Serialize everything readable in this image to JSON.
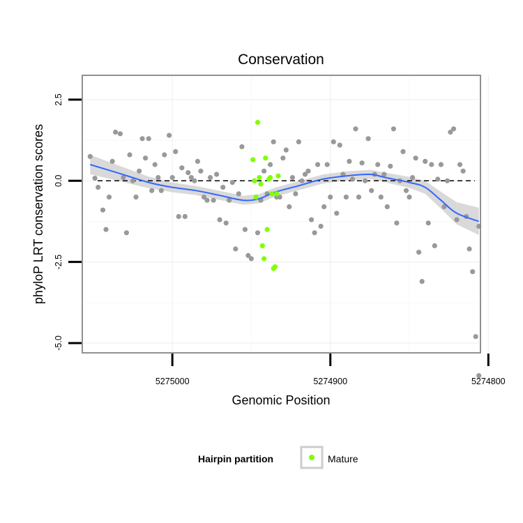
{
  "chart_data": {
    "type": "scatter",
    "title": "Conservation",
    "xlabel": "Genomic Position",
    "ylabel": "phyloP LRT conservation scores",
    "x_reversed": true,
    "xlim": [
      5275057,
      5274805
    ],
    "ylim": [
      -5.3,
      3.25
    ],
    "x_ticks": [
      5275000,
      5274900,
      5274800
    ],
    "x_tick_labels": [
      "5275000",
      "5274900",
      "5274800"
    ],
    "y_ticks": [
      2.5,
      0,
      -2.5,
      -5
    ],
    "y_tick_labels": [
      "2.5",
      "0.0",
      "-2.5",
      "-5.0"
    ],
    "grid": true,
    "reference_line": {
      "y": 0,
      "style": "dashed"
    },
    "legend": {
      "title": "Hairpin partition",
      "entries": [
        {
          "label": "Mature",
          "color": "#7fff00"
        }
      ],
      "position": "bottom"
    },
    "colors": {
      "other": "#999999",
      "mature": "#7fff00",
      "smooth": "#3366ff",
      "band": "#cccccc"
    },
    "series": [
      {
        "color": "#999999",
        "points": [
          [
            5275052,
            0.75
          ],
          [
            5275049,
            0.08
          ],
          [
            5275047,
            -0.2
          ],
          [
            5275044,
            -0.9
          ],
          [
            5275042,
            -1.5
          ],
          [
            5275040,
            -0.5
          ],
          [
            5275038,
            0.6
          ],
          [
            5275036,
            1.5
          ],
          [
            5275033,
            1.45
          ],
          [
            5275031,
            0.1
          ],
          [
            5275029,
            -1.6
          ],
          [
            5275027,
            0.8
          ],
          [
            5275025,
            0.0
          ],
          [
            5275023,
            -0.5
          ],
          [
            5275021,
            0.3
          ],
          [
            5275019,
            1.3
          ],
          [
            5275017,
            0.7
          ],
          [
            5275015,
            1.3
          ],
          [
            5275013,
            -0.3
          ],
          [
            5275011,
            0.5
          ],
          [
            5275009,
            0.1
          ],
          [
            5275007,
            -0.3
          ],
          [
            5275005,
            0.8
          ],
          [
            5275002,
            1.4
          ],
          [
            5275000,
            0.1
          ],
          [
            5274998,
            0.9
          ],
          [
            5274996,
            -1.1
          ],
          [
            5274994,
            0.4
          ],
          [
            5274992,
            -1.1
          ],
          [
            5274990,
            0.25
          ],
          [
            5274988,
            0.1
          ],
          [
            5274986,
            0.0
          ],
          [
            5274984,
            0.6
          ],
          [
            5274982,
            0.3
          ],
          [
            5274980,
            -0.5
          ],
          [
            5274978,
            -0.6
          ],
          [
            5274976,
            0.1
          ],
          [
            5274974,
            -0.6
          ],
          [
            5274972,
            0.2
          ],
          [
            5274970,
            -1.2
          ],
          [
            5274968,
            -0.2
          ],
          [
            5274966,
            -1.3
          ],
          [
            5274964,
            -0.6
          ],
          [
            5274962,
            -0.05
          ],
          [
            5274960,
            -2.1
          ],
          [
            5274958,
            -0.4
          ],
          [
            5274956,
            1.05
          ],
          [
            5274954,
            -1.5
          ],
          [
            5274952,
            -2.3
          ],
          [
            5274950,
            -2.4
          ],
          [
            5274948,
            0.0
          ],
          [
            5274946,
            -1.6
          ],
          [
            5274944,
            -0.6
          ],
          [
            5274942,
            0.3
          ],
          [
            5274940,
            -0.4
          ],
          [
            5274938,
            0.5
          ],
          [
            5274936,
            1.2
          ],
          [
            5274934,
            -0.5
          ],
          [
            5274932,
            -0.5
          ],
          [
            5274930,
            0.7
          ],
          [
            5274928,
            0.95
          ],
          [
            5274926,
            -0.8
          ],
          [
            5274924,
            0.1
          ],
          [
            5274922,
            -0.4
          ],
          [
            5274920,
            1.2
          ],
          [
            5274918,
            0.0
          ],
          [
            5274916,
            0.2
          ],
          [
            5274914,
            0.3
          ],
          [
            5274912,
            -1.2
          ],
          [
            5274910,
            -1.6
          ],
          [
            5274908,
            0.5
          ],
          [
            5274906,
            -1.4
          ],
          [
            5274904,
            -0.8
          ],
          [
            5274902,
            0.5
          ],
          [
            5274900,
            -0.5
          ],
          [
            5274898,
            1.2
          ],
          [
            5274896,
            -1.0
          ],
          [
            5274894,
            1.1
          ],
          [
            5274892,
            0.2
          ],
          [
            5274890,
            -0.5
          ],
          [
            5274888,
            0.6
          ],
          [
            5274886,
            0.05
          ],
          [
            5274884,
            1.6
          ],
          [
            5274882,
            -0.5
          ],
          [
            5274880,
            0.55
          ],
          [
            5274878,
            0.0
          ],
          [
            5274876,
            1.3
          ],
          [
            5274874,
            -0.3
          ],
          [
            5274872,
            0.2
          ],
          [
            5274870,
            0.5
          ],
          [
            5274868,
            -0.5
          ],
          [
            5274866,
            0.2
          ],
          [
            5274864,
            -0.8
          ],
          [
            5274862,
            0.45
          ],
          [
            5274860,
            1.6
          ],
          [
            5274858,
            -1.3
          ],
          [
            5274856,
            0.0
          ],
          [
            5274854,
            0.9
          ],
          [
            5274852,
            -0.3
          ],
          [
            5274850,
            -0.5
          ],
          [
            5274848,
            0.1
          ],
          [
            5274846,
            0.7
          ],
          [
            5274844,
            -2.2
          ],
          [
            5274842,
            -3.1
          ],
          [
            5274840,
            0.6
          ],
          [
            5274838,
            -1.3
          ],
          [
            5274836,
            0.5
          ],
          [
            5274834,
            -2.0
          ],
          [
            5274832,
            0.05
          ],
          [
            5274830,
            0.5
          ],
          [
            5274828,
            -0.8
          ],
          [
            5274826,
            0.0
          ],
          [
            5274824,
            1.5
          ],
          [
            5274822,
            1.6
          ],
          [
            5274820,
            -1.2
          ],
          [
            5274818,
            0.5
          ],
          [
            5274816,
            0.3
          ],
          [
            5274814,
            -1.1
          ],
          [
            5274812,
            -2.1
          ],
          [
            5274810,
            -2.8
          ],
          [
            5274808,
            -4.8
          ],
          [
            5274806,
            -6.0
          ],
          [
            5274806,
            -1.4
          ]
        ]
      },
      {
        "name": "Mature",
        "color": "#7fff00",
        "points": [
          [
            5274949,
            0.65
          ],
          [
            5274948,
            0.0
          ],
          [
            5274947,
            -0.5
          ],
          [
            5274946,
            1.8
          ],
          [
            5274945,
            0.1
          ],
          [
            5274944,
            -0.1
          ],
          [
            5274943,
            -2.0
          ],
          [
            5274942,
            -2.4
          ],
          [
            5274941,
            0.7
          ],
          [
            5274940,
            -1.5
          ],
          [
            5274939,
            0.05
          ],
          [
            5274938,
            0.1
          ],
          [
            5274937,
            -0.4
          ],
          [
            5274936,
            -2.7
          ],
          [
            5274935,
            -2.65
          ],
          [
            5274934,
            -0.4
          ],
          [
            5274933,
            0.15
          ]
        ]
      }
    ],
    "smooth": {
      "color": "#3366ff",
      "points": [
        [
          5275052,
          0.5
        ],
        [
          5275035,
          0.25
        ],
        [
          5275015,
          -0.05
        ],
        [
          5275000,
          -0.2
        ],
        [
          5274985,
          -0.3
        ],
        [
          5274970,
          -0.45
        ],
        [
          5274955,
          -0.6
        ],
        [
          5274945,
          -0.55
        ],
        [
          5274935,
          -0.35
        ],
        [
          5274920,
          -0.15
        ],
        [
          5274905,
          0.05
        ],
        [
          5274890,
          0.15
        ],
        [
          5274875,
          0.2
        ],
        [
          5274865,
          0.1
        ],
        [
          5274850,
          -0.05
        ],
        [
          5274840,
          -0.2
        ],
        [
          5274830,
          -0.6
        ],
        [
          5274820,
          -1.0
        ],
        [
          5274806,
          -1.25
        ]
      ],
      "band_halfwidth": [
        0.3,
        0.24,
        0.18,
        0.15,
        0.14,
        0.14,
        0.14,
        0.14,
        0.14,
        0.14,
        0.14,
        0.14,
        0.14,
        0.15,
        0.17,
        0.2,
        0.26,
        0.34,
        0.42
      ]
    }
  }
}
